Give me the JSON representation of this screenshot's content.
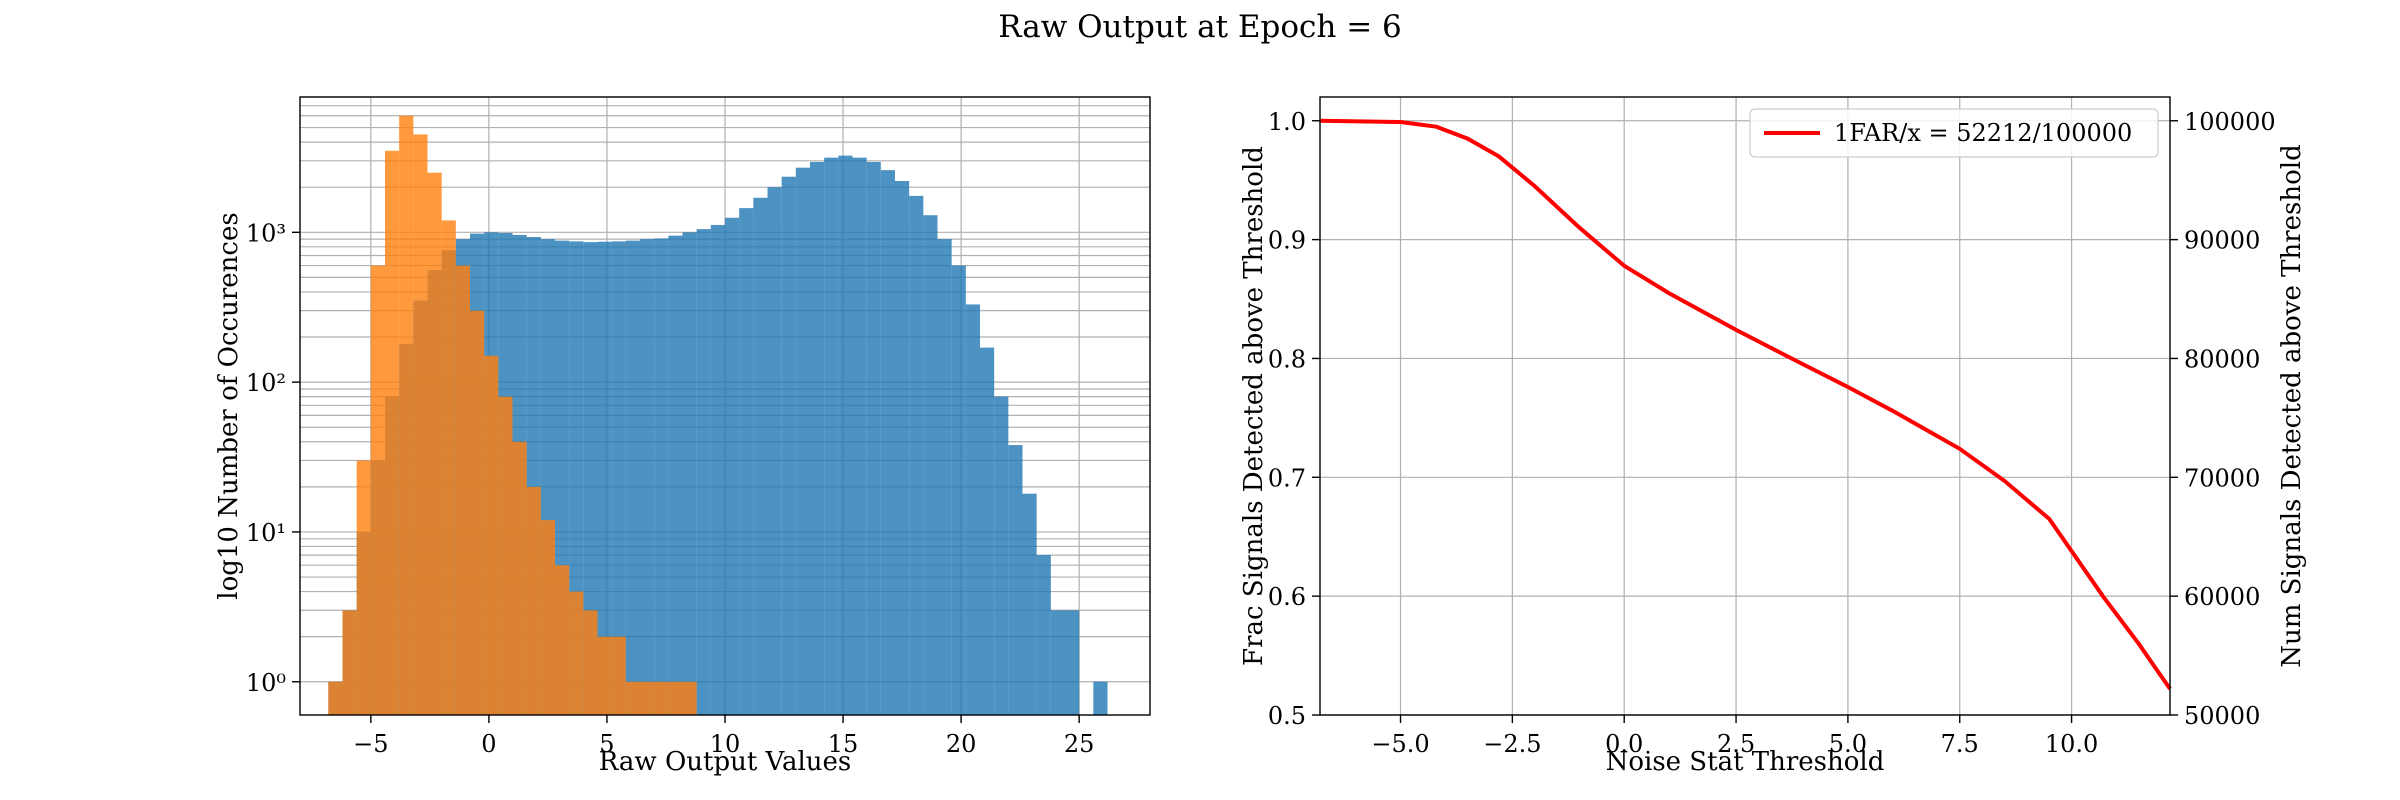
{
  "figure_title": "Raw Output at Epoch = 6",
  "colors": {
    "signal": "#1f77b4",
    "noise": "#ff7f0e",
    "curve": "#ff0000",
    "grid": "#b0b0b0"
  },
  "chart_data": [
    {
      "type": "bar",
      "subtype": "histogram",
      "xlabel": "Raw Output Values",
      "ylabel": "log10 Number of Occurences",
      "xlim": [
        -8,
        28
      ],
      "ylim": [
        0.6,
        8000
      ],
      "yscale": "log",
      "grid": true,
      "x_ticks": [
        -5,
        0,
        5,
        10,
        15,
        20,
        25
      ],
      "x_tick_labels": [
        "−5",
        "0",
        "5",
        "10",
        "15",
        "20",
        "25"
      ],
      "y_ticks": [
        1,
        10,
        100,
        1000
      ],
      "y_tick_labels": [
        "10⁰",
        "10¹",
        "10²",
        "10³"
      ],
      "bin_width": 0.6,
      "series": [
        {
          "color": "#1f77b4",
          "alpha": 0.8,
          "bins": [
            [
              -6.8,
              1
            ],
            [
              -6.2,
              3
            ],
            [
              -5.6,
              10
            ],
            [
              -5.0,
              30
            ],
            [
              -4.4,
              80
            ],
            [
              -3.8,
              180
            ],
            [
              -3.2,
              350
            ],
            [
              -2.6,
              560
            ],
            [
              -2.0,
              760
            ],
            [
              -1.4,
              900
            ],
            [
              -0.8,
              980
            ],
            [
              -0.2,
              1000
            ],
            [
              0.4,
              990
            ],
            [
              1.0,
              960
            ],
            [
              1.6,
              930
            ],
            [
              2.2,
              900
            ],
            [
              2.8,
              880
            ],
            [
              3.4,
              870
            ],
            [
              4.0,
              860
            ],
            [
              4.6,
              865
            ],
            [
              5.2,
              870
            ],
            [
              5.8,
              880
            ],
            [
              6.4,
              900
            ],
            [
              7.0,
              910
            ],
            [
              7.6,
              950
            ],
            [
              8.2,
              1000
            ],
            [
              8.8,
              1050
            ],
            [
              9.4,
              1120
            ],
            [
              10.0,
              1250
            ],
            [
              10.6,
              1450
            ],
            [
              11.2,
              1700
            ],
            [
              11.8,
              2000
            ],
            [
              12.4,
              2350
            ],
            [
              13.0,
              2700
            ],
            [
              13.6,
              2950
            ],
            [
              14.2,
              3150
            ],
            [
              14.8,
              3250
            ],
            [
              15.4,
              3150
            ],
            [
              16.0,
              2950
            ],
            [
              16.6,
              2600
            ],
            [
              17.2,
              2200
            ],
            [
              17.8,
              1750
            ],
            [
              18.4,
              1300
            ],
            [
              19.0,
              900
            ],
            [
              19.6,
              600
            ],
            [
              20.2,
              330
            ],
            [
              20.8,
              170
            ],
            [
              21.4,
              80
            ],
            [
              22.0,
              38
            ],
            [
              22.6,
              18
            ],
            [
              23.2,
              7
            ],
            [
              23.8,
              3
            ],
            [
              24.4,
              3
            ],
            [
              25.6,
              1
            ]
          ]
        },
        {
          "color": "#ff7f0e",
          "alpha": 0.8,
          "bins": [
            [
              -6.8,
              1
            ],
            [
              -6.2,
              3
            ],
            [
              -5.6,
              30
            ],
            [
              -5.0,
              600
            ],
            [
              -4.4,
              3500
            ],
            [
              -3.8,
              6000
            ],
            [
              -3.2,
              4500
            ],
            [
              -2.6,
              2500
            ],
            [
              -2.0,
              1200
            ],
            [
              -1.4,
              600
            ],
            [
              -0.8,
              300
            ],
            [
              -0.2,
              150
            ],
            [
              0.4,
              80
            ],
            [
              1.0,
              40
            ],
            [
              1.6,
              20
            ],
            [
              2.2,
              12
            ],
            [
              2.8,
              6
            ],
            [
              3.4,
              4
            ],
            [
              4.0,
              3
            ],
            [
              4.6,
              2
            ],
            [
              5.2,
              2
            ],
            [
              5.8,
              1
            ],
            [
              6.4,
              1
            ],
            [
              7.0,
              1
            ],
            [
              7.6,
              1
            ],
            [
              8.2,
              1
            ]
          ]
        }
      ]
    },
    {
      "type": "line",
      "xlabel": "Noise Stat Threshold",
      "ylabel": "Frac Signals Detected above Threshold",
      "ylabel_right": "Num Signals Detected above Threshold",
      "xlim": [
        -6.8,
        12.2
      ],
      "ylim": [
        0.5,
        1.02
      ],
      "ylim_right": [
        50000,
        102000
      ],
      "grid": true,
      "legend_position": "top-right",
      "x_ticks": [
        -5.0,
        -2.5,
        0.0,
        2.5,
        5.0,
        7.5,
        10.0
      ],
      "x_tick_labels": [
        "−5.0",
        "−2.5",
        "0.0",
        "2.5",
        "5.0",
        "7.5",
        "10.0"
      ],
      "y_ticks": [
        0.5,
        0.6,
        0.7,
        0.8,
        0.9,
        1.0
      ],
      "y_tick_labels": [
        "0.5",
        "0.6",
        "0.7",
        "0.8",
        "0.9",
        "1.0"
      ],
      "y_right_ticks": [
        50000,
        60000,
        70000,
        80000,
        90000,
        100000
      ],
      "y_right_tick_labels": [
        "50000",
        "60000",
        "70000",
        "80000",
        "90000",
        "100000"
      ],
      "series": [
        {
          "name": "1FAR/x = 52212/100000",
          "color": "#ff0000",
          "points": [
            [
              -6.8,
              1.0
            ],
            [
              -5.0,
              0.999
            ],
            [
              -4.2,
              0.995
            ],
            [
              -3.5,
              0.985
            ],
            [
              -2.8,
              0.97
            ],
            [
              -2.0,
              0.945
            ],
            [
              -1.0,
              0.91
            ],
            [
              0.0,
              0.878
            ],
            [
              1.0,
              0.855
            ],
            [
              2.5,
              0.824
            ],
            [
              4.0,
              0.795
            ],
            [
              5.0,
              0.776
            ],
            [
              6.0,
              0.756
            ],
            [
              7.5,
              0.724
            ],
            [
              8.5,
              0.697
            ],
            [
              9.5,
              0.665
            ],
            [
              10.7,
              0.6
            ],
            [
              11.5,
              0.56
            ],
            [
              12.2,
              0.522
            ]
          ]
        }
      ]
    }
  ]
}
